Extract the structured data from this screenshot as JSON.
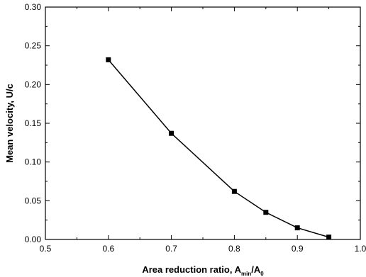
{
  "chart_data": {
    "type": "line",
    "title": "",
    "xlabel": {
      "main": "Area reduction ratio, A",
      "sub1": "min",
      "slash": "/A",
      "sub2": "0"
    },
    "ylabel": "Mean velocity, U/c",
    "xlim": [
      0.5,
      1.0
    ],
    "ylim": [
      0.0,
      0.3
    ],
    "x_ticks": [
      "0.5",
      "0.6",
      "0.7",
      "0.8",
      "0.9",
      "1.0"
    ],
    "y_ticks": [
      "0.00",
      "0.05",
      "0.10",
      "0.15",
      "0.20",
      "0.25",
      "0.30"
    ],
    "grid": false,
    "legend": "none",
    "series": [
      {
        "marker": "square",
        "color": "#000000",
        "x": [
          0.6,
          0.7,
          0.8,
          0.85,
          0.9,
          0.95
        ],
        "y": [
          0.232,
          0.137,
          0.062,
          0.035,
          0.015,
          0.003
        ]
      }
    ]
  }
}
